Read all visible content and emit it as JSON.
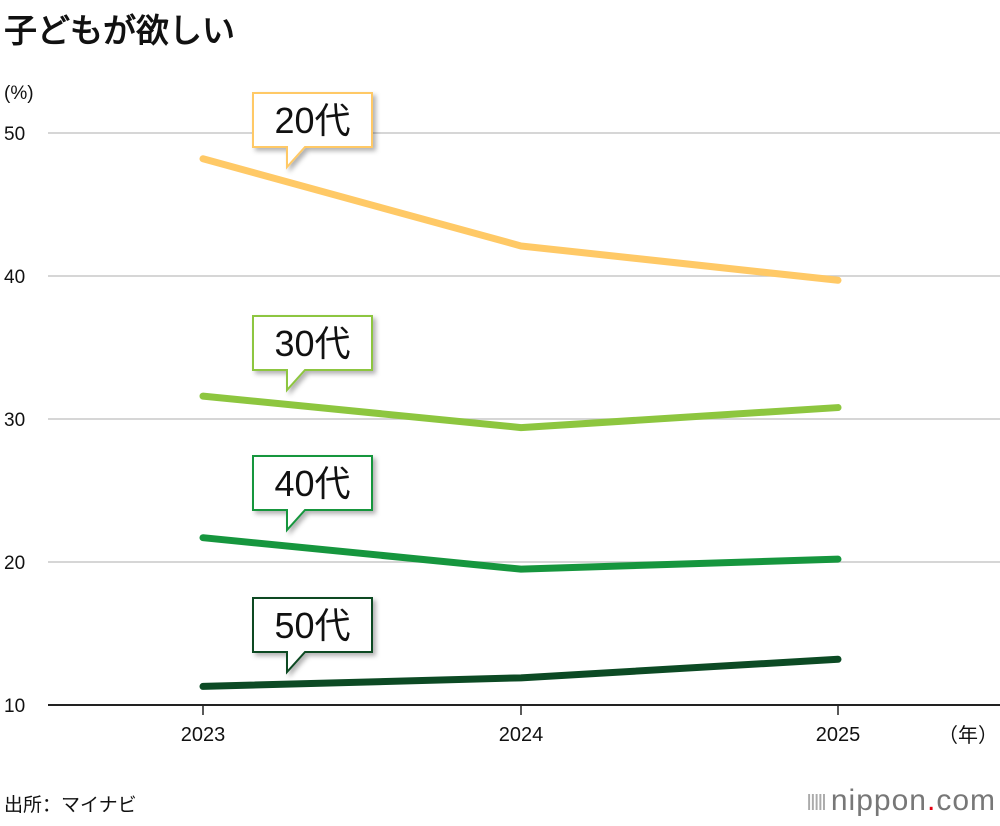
{
  "title": "子どもが欲しい",
  "source": "出所：マイナビ",
  "logo": {
    "name": "nippon",
    "dot": ".",
    "suffix": "com"
  },
  "chart_data": {
    "type": "line",
    "title": "子どもが欲しい",
    "ylabel": "(%)",
    "xlabel": "（年）",
    "x": [
      "2023",
      "2024",
      "2025"
    ],
    "ylim": [
      10,
      50
    ],
    "yticks": [
      10,
      20,
      30,
      40,
      50
    ],
    "grid": true,
    "series": [
      {
        "name": "20代",
        "color": "#FFC966",
        "values": [
          48.2,
          42.1,
          39.7
        ]
      },
      {
        "name": "30代",
        "color": "#8DC63F",
        "values": [
          31.6,
          29.4,
          30.8
        ]
      },
      {
        "name": "40代",
        "color": "#16963E",
        "values": [
          21.7,
          19.5,
          20.2
        ]
      },
      {
        "name": "50代",
        "color": "#0C4A24",
        "values": [
          11.3,
          11.9,
          13.2
        ]
      }
    ]
  }
}
